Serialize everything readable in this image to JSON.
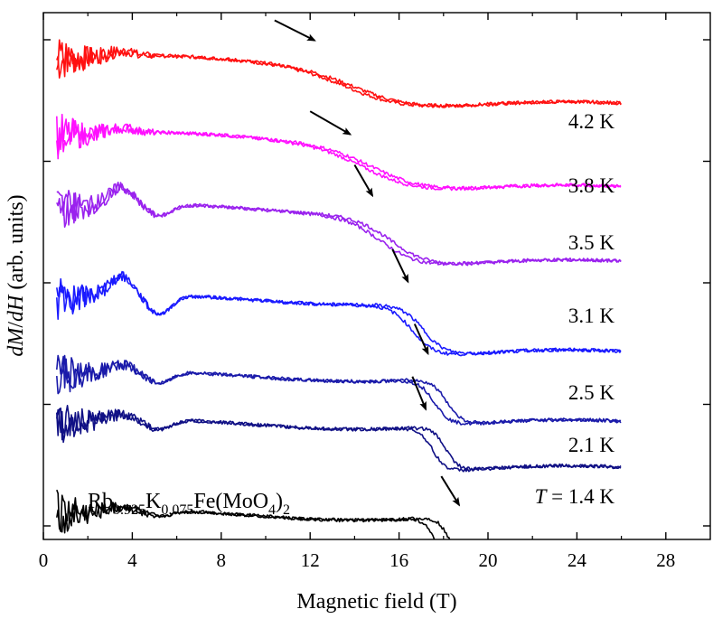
{
  "chart_data": {
    "type": "line",
    "title": "",
    "xlabel": "Magnetic field (T)",
    "ylabel": "dM/dH (arb. units)",
    "ylabel_parts": [
      {
        "text": "dM",
        "italic": true
      },
      {
        "text": "/",
        "italic": false
      },
      {
        "text": "dH",
        "italic": true
      },
      {
        "text": " (arb. units)",
        "italic": false
      }
    ],
    "xlim": [
      0,
      30
    ],
    "xticks": [
      0,
      4,
      8,
      12,
      16,
      20,
      24,
      28
    ],
    "ylim": [
      -0.25,
      5.25
    ],
    "y_tick_count": 5,
    "grid": false,
    "compound_label": {
      "parts": [
        {
          "text": "Rb",
          "sub": false
        },
        {
          "text": "0.925",
          "sub": true
        },
        {
          "text": "K",
          "sub": false
        },
        {
          "text": "0.075",
          "sub": true
        },
        {
          "text": "Fe(MoO",
          "sub": false
        },
        {
          "text": "4",
          "sub": true
        },
        {
          "text": ")",
          "sub": false
        },
        {
          "text": "2",
          "sub": true
        }
      ]
    },
    "series": [
      {
        "name": "4.2 K",
        "color": "#ff1010",
        "offset": 4.75,
        "arrow": [
          [
            10.4,
            5.17
          ],
          [
            12.2,
            4.96
          ]
        ]
      },
      {
        "name": "3.8 K",
        "color": "#ff10ff",
        "offset": 3.95,
        "arrow": [
          [
            12.0,
            4.22
          ],
          [
            13.8,
            3.98
          ]
        ]
      },
      {
        "name": "3.5 K",
        "color": "#9a22ee",
        "offset": 3.2,
        "arrow": [
          [
            14.0,
            3.66
          ],
          [
            14.8,
            3.34
          ]
        ]
      },
      {
        "name": "3.1 K",
        "color": "#1a1aff",
        "offset": 2.25,
        "arrow": [
          [
            15.7,
            2.78
          ],
          [
            16.4,
            2.44
          ]
        ]
      },
      {
        "name": "2.5 K",
        "color": "#1a1aaa",
        "offset": 1.45,
        "arrow": [
          [
            16.7,
            2.0
          ],
          [
            17.3,
            1.69
          ]
        ]
      },
      {
        "name": "2.1 K",
        "color": "#101085",
        "offset": 0.95,
        "arrow": [
          [
            16.6,
            1.45
          ],
          [
            17.2,
            1.11
          ]
        ]
      },
      {
        "name": "T = 1.4 K",
        "label_parts": [
          {
            "text": "T",
            "italic": true
          },
          {
            "text": " = 1.4 K",
            "italic": false
          }
        ],
        "color": "#000000",
        "offset": 0.0,
        "arrow": [
          [
            17.9,
            0.41
          ],
          [
            18.7,
            0.11
          ]
        ]
      }
    ]
  }
}
